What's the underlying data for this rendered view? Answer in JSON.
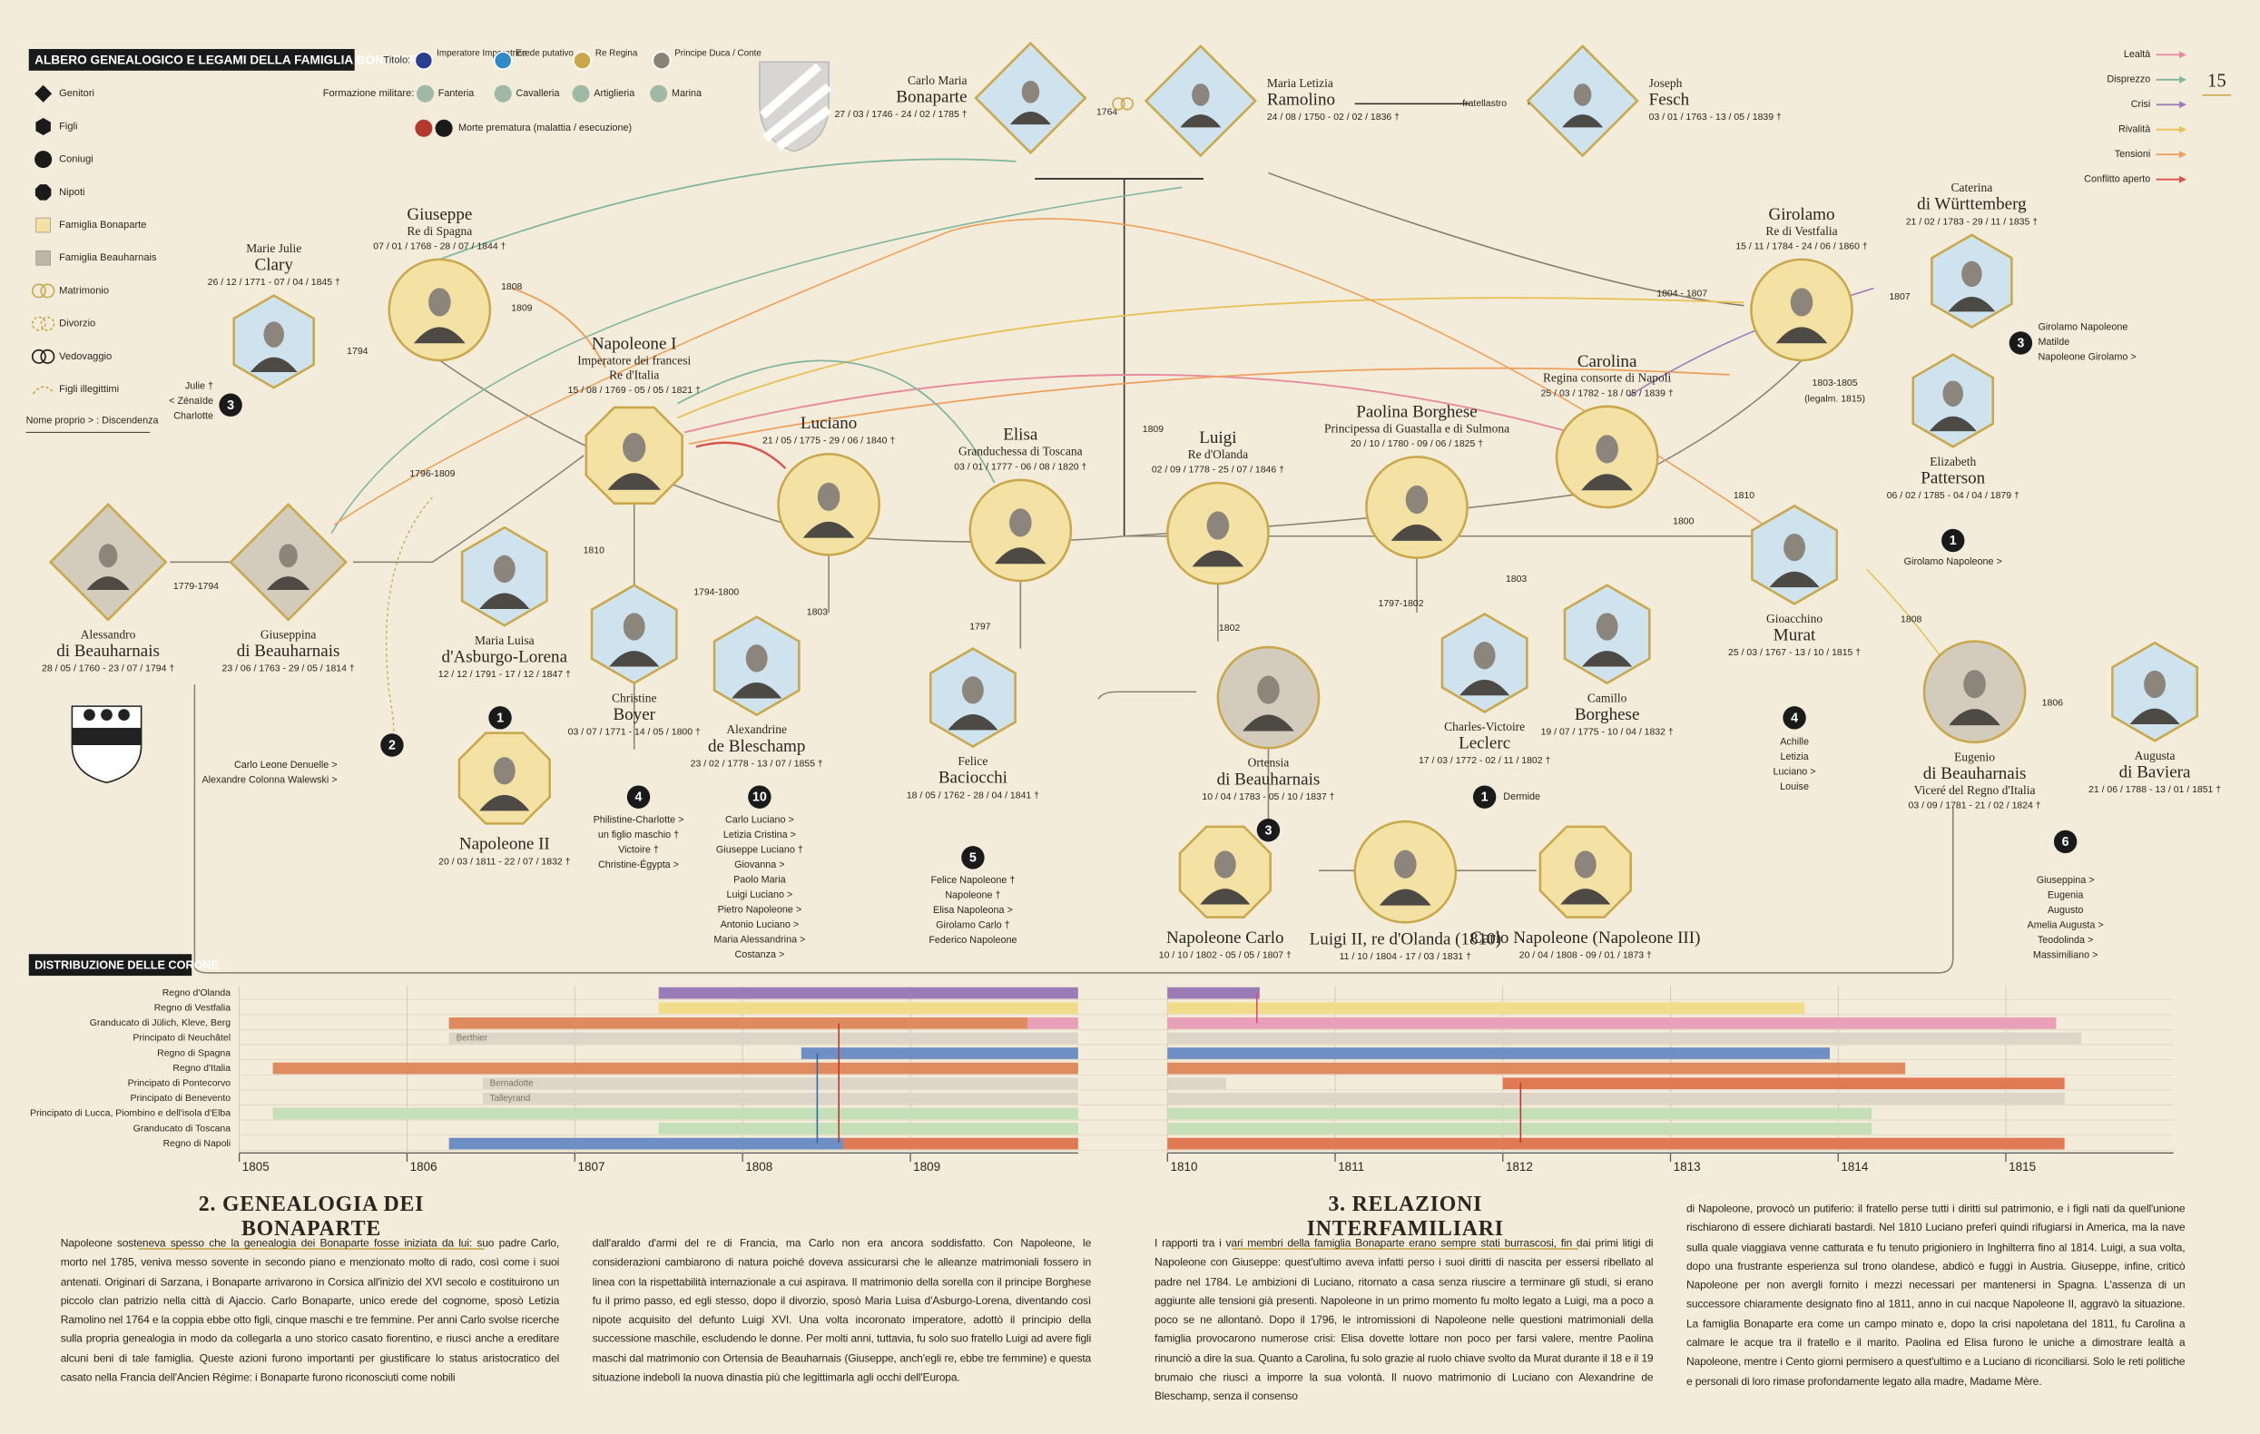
{
  "header": {
    "title": "ALBERO GENEALOGICO E LEGAMI DELLA FAMIGLIA BONAPARTE",
    "page_number": "15"
  },
  "legend": {
    "items": [
      "Genitori",
      "Figli",
      "Coniugi",
      "Nipoti",
      "Famiglia Bonaparte",
      "Famiglia Beauharnais",
      "Matrimonio",
      "Divorzio",
      "Vedovaggio",
      "Figli illegittimi"
    ],
    "name_note": "Nome proprio > : Discendenza"
  },
  "titles_legend": {
    "label": "Titolo:",
    "items": [
      "Imperatore Imperatrice",
      "Erede putativo",
      "Re Regina",
      "Principe Duca / Conte"
    ]
  },
  "military_legend": {
    "label": "Formazione militare:",
    "items": [
      "Fanteria",
      "Cavalleria",
      "Artiglieria",
      "Marina"
    ]
  },
  "death_note": "Morte prematura (malattia / esecuzione)",
  "relations_legend": [
    "Lealtà",
    "Disprezzo",
    "Crisi",
    "Rivalità",
    "Tensioni",
    "Conflitto aperto"
  ],
  "people": [
    {
      "name": [
        "Carlo Maria",
        "Bonaparte"
      ],
      "titles": [],
      "dates": "27 / 03 / 1746 - 24 / 02 / 1785 †"
    },
    {
      "name": [
        "Maria Letizia",
        "Ramolino"
      ],
      "titles": [],
      "dates": "24 / 08 / 1750 - 02 / 02 / 1836 †"
    },
    {
      "name": [
        "Joseph",
        "Fesch"
      ],
      "titles": [],
      "dates": "03 / 01 / 1763 - 13 / 05 / 1839 †"
    },
    {
      "name": [
        "Giuseppe"
      ],
      "titles": [
        "Re di Spagna"
      ],
      "dates": "07 / 01 / 1768 - 28 / 07 / 1844 †"
    },
    {
      "name": [
        "Marie Julie",
        "Clary"
      ],
      "titles": [],
      "dates": "26 / 12 / 1771 - 07 / 04 / 1845 †"
    },
    {
      "name": [
        "Napoleone I"
      ],
      "titles": [
        "Imperatore dei francesi",
        "Re d'Italia"
      ],
      "dates": "15 / 08 / 1769 - 05 / 05 / 1821 †"
    },
    {
      "name": [
        "Luciano"
      ],
      "titles": [],
      "dates": "21 / 05 / 1775 - 29 / 06 / 1840 †"
    },
    {
      "name": [
        "Elisa"
      ],
      "titles": [
        "Granduchessa di Toscana"
      ],
      "dates": "03 / 01 / 1777 - 06 / 08 / 1820 †"
    },
    {
      "name": [
        "Luigi"
      ],
      "titles": [
        "Re d'Olanda"
      ],
      "dates": "02 / 09 / 1778 - 25 / 07 / 1846 †"
    },
    {
      "name": [
        "Paolina Borghese"
      ],
      "titles": [
        "Principessa di Guastalla e di Sulmona"
      ],
      "dates": "20 / 10 / 1780 - 09 / 06 / 1825 †"
    },
    {
      "name": [
        "Carolina"
      ],
      "titles": [
        "Regina consorte di Napoli"
      ],
      "dates": "25 / 03 / 1782 - 18 / 05 / 1839 †"
    },
    {
      "name": [
        "Girolamo"
      ],
      "titles": [
        "Re di Vestfalia"
      ],
      "dates": "15 / 11 / 1784 - 24 / 06 / 1860 †"
    },
    {
      "name": [
        "Caterina",
        "di Württemberg"
      ],
      "titles": [],
      "dates": "21 / 02 / 1783 - 29 / 11 / 1835 †"
    },
    {
      "name": [
        "Elizabeth",
        "Patterson"
      ],
      "titles": [],
      "dates": "06 / 02 / 1785 - 04 / 04 / 1879 †"
    },
    {
      "name": [
        "Alessandro",
        "di Beauharnais"
      ],
      "titles": [],
      "dates": "28 / 05 / 1760 - 23 / 07 / 1794 †"
    },
    {
      "name": [
        "Giuseppina",
        "di Beauharnais"
      ],
      "titles": [],
      "dates": "23 / 06 / 1763 - 29 / 05 / 1814 †"
    },
    {
      "name": [
        "Maria Luisa",
        "d'Asburgo-Lorena"
      ],
      "titles": [],
      "dates": "12 / 12 / 1791 - 17 / 12 / 1847 †"
    },
    {
      "name": [
        "Christine",
        "Boyer"
      ],
      "titles": [],
      "dates": "03 / 07 / 1771 - 14 / 05 / 1800 †"
    },
    {
      "name": [
        "Alexandrine",
        "de Bleschamp"
      ],
      "titles": [],
      "dates": "23 / 02 / 1778 - 13 / 07 / 1855 †"
    },
    {
      "name": [
        "Felice",
        "Baciocchi"
      ],
      "titles": [],
      "dates": "18 / 05 / 1762 - 28 / 04 / 1841 †"
    },
    {
      "name": [
        "Ortensia",
        "di Beauharnais"
      ],
      "titles": [],
      "dates": "10 / 04 / 1783 - 05 / 10 / 1837 †"
    },
    {
      "name": [
        "Charles-Victoire",
        "Leclerc"
      ],
      "titles": [],
      "dates": "17 / 03 / 1772 - 02 / 11 / 1802 †"
    },
    {
      "name": [
        "Camillo",
        "Borghese"
      ],
      "titles": [],
      "dates": "19 / 07 / 1775 - 10 / 04 / 1832 †"
    },
    {
      "name": [
        "Gioacchino",
        "Murat"
      ],
      "titles": [],
      "dates": "25 / 03 / 1767 - 13 / 10 / 1815 †"
    },
    {
      "name": [
        "Eugenio",
        "di Beauharnais"
      ],
      "titles": [
        "Viceré del Regno d'Italia"
      ],
      "dates": "03 / 09 / 1781 - 21 / 02 / 1824 †"
    },
    {
      "name": [
        "Augusta",
        "di Baviera"
      ],
      "titles": [],
      "dates": "21 / 06 / 1788 - 13 / 01 / 1851 †"
    },
    {
      "name": [
        "Napoleone II"
      ],
      "titles": [],
      "dates": "20 / 03 / 1811 - 22 / 07 / 1832 †"
    },
    {
      "name": [
        "Napoleone Carlo"
      ],
      "titles": [],
      "dates": "10 / 10 / 1802 - 05 / 05 / 1807 †"
    },
    {
      "name": [
        "Luigi II, re d'Olanda (1810)"
      ],
      "titles": [],
      "dates": "11 / 10 / 1804 - 17 / 03 / 1831 †"
    },
    {
      "name": [
        "Carlo Napoleone (Napoleone III)"
      ],
      "titles": [],
      "dates": "20 / 04 / 1808 - 09 / 01 / 1873 †"
    }
  ],
  "descendants": [
    {
      "count": 3,
      "names": [
        "Julie †",
        "< Zénaïde",
        "Charlotte"
      ]
    },
    {
      "count": 2,
      "names": [
        "Carlo Leone Denuelle >",
        "Alexandre Colonna Walewski >"
      ]
    },
    {
      "count": 1,
      "names": []
    },
    {
      "count": 4,
      "names": [
        "Philistine-Charlotte >",
        "un figlio maschio †",
        "Victoire †",
        "Christine-Égypta >"
      ]
    },
    {
      "count": 10,
      "names": [
        "Carlo Luciano >",
        "Letizia Cristina >",
        "Giuseppe Luciano †",
        "Giovanna >",
        "Paolo Maria",
        "Luigi Luciano >",
        "Pietro Napoleone >",
        "Antonio Luciano >",
        "Maria Alessandrina >",
        "Costanza >"
      ]
    },
    {
      "count": 5,
      "names": [
        "Felice Napoleone †",
        "Napoleone †",
        "Elisa Napoleona >",
        "Girolamo Carlo †",
        "Federico Napoleone"
      ]
    },
    {
      "count": 3,
      "names": []
    },
    {
      "count": 1,
      "names": [
        "Dermide"
      ]
    },
    {
      "count": 4,
      "names": [
        "Achille",
        "Letizia",
        "Luciano >",
        "Louise"
      ]
    },
    {
      "count": 6,
      "names": [
        "Giuseppina >",
        "Eugenia",
        "Augusto",
        "Amelia Augusta >",
        "Teodolinda >",
        "Massimiliano >"
      ]
    },
    {
      "count": 3,
      "names": [
        "Girolamo Napoleone",
        "Matilde",
        "Napoleone Girolamo >"
      ]
    },
    {
      "count": 1,
      "names": [
        "Girolamo Napoleone >"
      ]
    }
  ],
  "link_labels": [
    "1764",
    "fratellastro",
    "1808",
    "1809",
    "1794",
    "1796-1809",
    "1810",
    "1779-1794",
    "1794-1800",
    "1803",
    "1797",
    "1809",
    "1802",
    "1797-1802",
    "1803",
    "1800",
    "1810",
    "1804 - 1807",
    "1807",
    "1803-1805",
    "(legalm. 1815)",
    "1808",
    "1806"
  ],
  "chart_data": {
    "type": "timeline",
    "title": "DISTRIBUZIONE DELLE CORONE",
    "categories": [
      "Regno d'Olanda",
      "Regno di Vestfalia",
      "Granducato di Jülich, Kleve, Berg",
      "Principato di Neuchâtel",
      "Regno di Spagna",
      "Regno d'Italia",
      "Principato di Pontecorvo",
      "Principato di Benevento",
      "Principato di Lucca, Piombino e dell'isola d'Elba",
      "Granducato di Toscana",
      "Regno di Napoli"
    ],
    "panels": [
      {
        "xlim": [
          1805,
          1810
        ],
        "xticks": [
          1805,
          1806,
          1807,
          1808,
          1809
        ],
        "segments": [
          {
            "row": 0,
            "start": 1807.5,
            "end": 1810,
            "color": "#9b7bb5"
          },
          {
            "row": 1,
            "start": 1807.5,
            "end": 1810,
            "color": "#f0dc8a"
          },
          {
            "row": 2,
            "start": 1806.25,
            "end": 1809.7,
            "color": "#e08a5f"
          },
          {
            "row": 2,
            "start": 1809.7,
            "end": 1810,
            "color": "#e9a0b8"
          },
          {
            "row": 3,
            "start": 1806.25,
            "end": 1810,
            "color": "#ddd6c8",
            "holder": "Berthier"
          },
          {
            "row": 4,
            "start": 1808.35,
            "end": 1810,
            "color": "#6e8fc4"
          },
          {
            "row": 5,
            "start": 1805.2,
            "end": 1810,
            "color": "#e08a5f"
          },
          {
            "row": 6,
            "start": 1806.45,
            "end": 1810,
            "color": "#ddd6c8",
            "holder": "Bernadotte"
          },
          {
            "row": 7,
            "start": 1806.45,
            "end": 1810,
            "color": "#ddd6c8",
            "holder": "Talleyrand"
          },
          {
            "row": 8,
            "start": 1805.2,
            "end": 1810,
            "color": "#c5dfb8"
          },
          {
            "row": 9,
            "start": 1807.5,
            "end": 1810,
            "color": "#c5dfb8"
          },
          {
            "row": 10,
            "start": 1806.25,
            "end": 1808.6,
            "color": "#6e8fc4"
          },
          {
            "row": 10,
            "start": 1808.6,
            "end": 1810,
            "color": "#e07a55"
          }
        ]
      },
      {
        "xlim": [
          1810,
          1816
        ],
        "xticks": [
          1810,
          1811,
          1812,
          1813,
          1814,
          1815
        ],
        "segments": [
          {
            "row": 0,
            "start": 1810,
            "end": 1810.55,
            "color": "#9b7bb5"
          },
          {
            "row": 1,
            "start": 1810,
            "end": 1813.8,
            "color": "#f0dc8a"
          },
          {
            "row": 2,
            "start": 1810,
            "end": 1815.3,
            "color": "#e9a0b8"
          },
          {
            "row": 3,
            "start": 1810,
            "end": 1815.45,
            "color": "#ddd6c8"
          },
          {
            "row": 4,
            "start": 1810,
            "end": 1813.95,
            "color": "#6e8fc4"
          },
          {
            "row": 5,
            "start": 1810,
            "end": 1814.4,
            "color": "#e08a5f"
          },
          {
            "row": 6,
            "start": 1810,
            "end": 1810.35,
            "color": "#ddd6c8"
          },
          {
            "row": 6,
            "start": 1812,
            "end": 1815.35,
            "color": "#e07a55"
          },
          {
            "row": 7,
            "start": 1810,
            "end": 1815.35,
            "color": "#ddd6c8"
          },
          {
            "row": 8,
            "start": 1810,
            "end": 1814.2,
            "color": "#c5dfb8"
          },
          {
            "row": 9,
            "start": 1810,
            "end": 1814.2,
            "color": "#c5dfb8"
          },
          {
            "row": 10,
            "start": 1810,
            "end": 1815.35,
            "color": "#e07a55"
          }
        ]
      }
    ]
  },
  "articles": [
    {
      "title": "2. GENEALOGIA DEI BONAPARTE",
      "columns": [
        "Napoleone sosteneva spesso che la genealogia dei Bonaparte fosse iniziata da lui: suo padre Carlo, morto nel 1785, veniva messo sovente in secondo piano e menzionato molto di rado, così come i suoi antenati. Originari di Sarzana, i Bonaparte arrivarono in Corsica all'inizio del XVI secolo e costituirono un piccolo clan patrizio nella città di Ajaccio. Carlo Bonaparte, unico erede del cognome, sposò Letizia Ramolino nel 1764 e la coppia ebbe otto figli, cinque maschi e tre femmine. Per anni Carlo svolse ricerche sulla propria genealogia in modo da collegarla a uno storico casato fiorentino, e riuscì anche a ereditare alcuni beni di tale famiglia. Queste azioni furono importanti per giustificare lo status aristocratico del casato nella Francia dell'Ancien Régime: i Bonaparte furono riconosciuti come nobili",
        "dall'araldo d'armi del re di Francia, ma Carlo non era ancora soddisfatto. Con Napoleone, le considerazioni cambiarono di natura poiché doveva assicurarsi che le alleanze matrimoniali fossero in linea con la rispettabilità internazionale a cui aspirava. Il matrimonio della sorella con il principe Borghese fu il primo passo, ed egli stesso, dopo il divorzio, sposò Maria Luisa d'Asburgo-Lorena, diventando così nipote acquisito del defunto Luigi XVI. Una volta incoronato imperatore, adottò il principio della successione maschile, escludendo le donne. Per molti anni, tuttavia, fu solo suo fratello Luigi ad avere figli maschi dal matrimonio con Ortensia de Beauharnais (Giuseppe, anch'egli re, ebbe tre femmine) e questa situazione indebolì la nuova dinastia più che legittimarla agli occhi dell'Europa."
      ]
    },
    {
      "title": "3. RELAZIONI INTERFAMILIARI",
      "columns": [
        "I rapporti tra i vari membri della famiglia Bonaparte erano sempre stati burrascosi, fin dai primi litigi di Napoleone con Giuseppe: quest'ultimo aveva infatti perso i suoi diritti di nascita per essersi ribellato al padre nel 1784. Le ambizioni di Luciano, ritornato a casa senza riuscire a terminare gli studi, si erano aggiunte alle tensioni già presenti. Napoleone in un primo momento fu molto legato a Luigi, ma a poco a poco se ne allontanò. Dopo il 1796, le intromissioni di Napoleone nelle questioni matrimoniali della famiglia provocarono numerose crisi: Elisa dovette lottare non poco per farsi valere, mentre Paolina rinunciò a dire la sua. Quanto a Carolina, fu solo grazie al ruolo chiave svolto da Murat durante il 18 e il 19 brumaio che riuscì a imporre la sua volontà. Il nuovo matrimonio di Luciano con Alexandrine de Bleschamp, senza il consenso",
        "di Napoleone, provocò un putiferio: il fratello perse tutti i diritti sul patrimonio, e i figli nati da quell'unione rischiarono di essere dichiarati bastardi. Nel 1810 Luciano preferì quindi rifugiarsi in America, ma la nave sulla quale viaggiava venne catturata e fu tenuto prigioniero in Inghilterra fino al 1814. Luigi, a sua volta, dopo una frustrante esperienza sul trono olandese, abdicò e fuggì in Austria. Giuseppe, infine, criticò Napoleone per non avergli fornito i mezzi necessari per mantenersi in Spagna. L'assenza di un successore chiaramente designato fino al 1811, anno in cui nacque Napoleone II, aggravò la situazione. La famiglia Bonaparte era come un campo minato e, dopo la crisi napoletana del 1811, fu Carolina a calmare le acque tra il fratello e il marito. Paolina ed Elisa furono le uniche a dimostrare lealtà a Napoleone, mentre i Cento giorni permisero a quest'ultimo e a Luciano di riconciliarsi. Solo le reti politiche e personali di loro rimase profondamente legato alla madre, Madame Mère."
      ]
    }
  ]
}
